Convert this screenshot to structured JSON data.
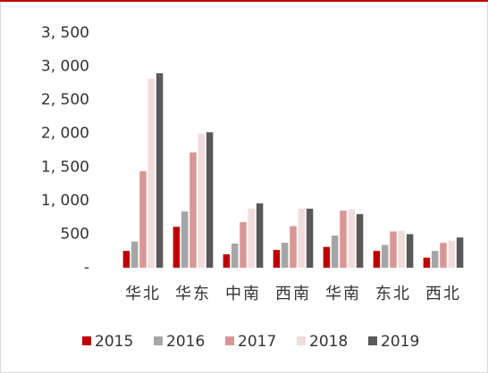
{
  "chart_data": {
    "type": "bar",
    "categories": [
      "华北",
      "华东",
      "中南",
      "西南",
      "华南",
      "东北",
      "西北"
    ],
    "series": [
      {
        "name": "2015",
        "color": "#c00000",
        "values": [
          250,
          610,
          200,
          265,
          310,
          250,
          150
        ]
      },
      {
        "name": "2016",
        "color": "#a6a6a6",
        "values": [
          390,
          840,
          360,
          372,
          480,
          340,
          250
        ]
      },
      {
        "name": "2017",
        "color": "#d99694",
        "values": [
          1440,
          1720,
          680,
          620,
          850,
          540,
          370
        ]
      },
      {
        "name": "2018",
        "color": "#f2dcdb",
        "values": [
          2820,
          2000,
          880,
          880,
          870,
          550,
          400
        ]
      },
      {
        "name": "2019",
        "color": "#595959",
        "values": [
          2900,
          2020,
          960,
          880,
          800,
          500,
          450
        ]
      }
    ],
    "ylim": [
      0,
      3500
    ],
    "yticks": [
      {
        "value": 0,
        "label": "-"
      },
      500,
      {
        "value": 1000,
        "label": "1, 000"
      },
      {
        "value": 1500,
        "label": "1, 500"
      },
      {
        "value": 2000,
        "label": "2, 000"
      },
      {
        "value": 2500,
        "label": "2, 500"
      },
      {
        "value": 3000,
        "label": "3, 000"
      },
      {
        "value": 3500,
        "label": "3, 500"
      }
    ],
    "legend": "bottom"
  }
}
